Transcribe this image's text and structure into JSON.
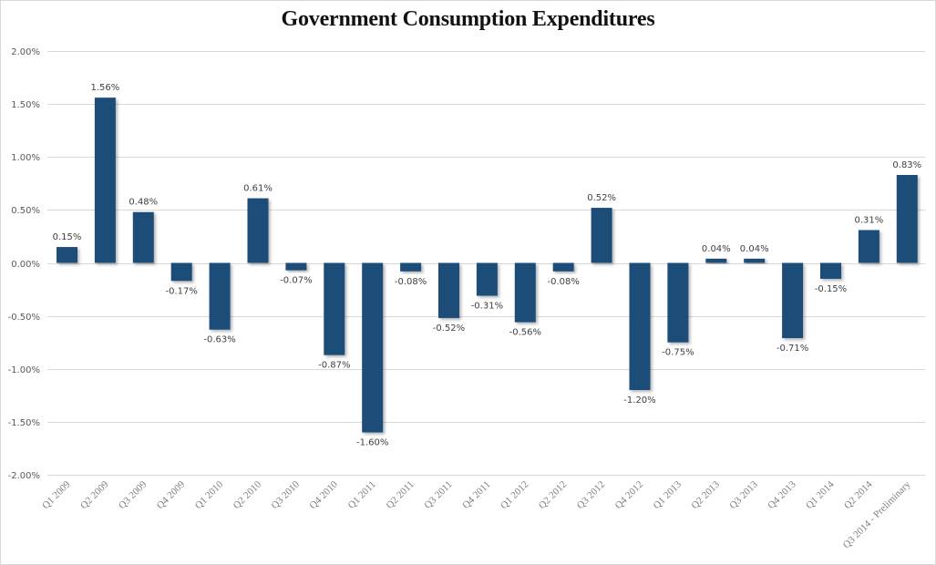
{
  "chart_data": {
    "type": "bar",
    "title": "Government Consumption Expenditures",
    "xlabel": "",
    "ylabel": "",
    "ylim": [
      -2.0,
      2.0
    ],
    "yticks": [
      2.0,
      1.5,
      1.0,
      0.5,
      0.0,
      -0.5,
      -1.0,
      -1.5,
      -2.0
    ],
    "ytick_labels": [
      "2.00%",
      "1.50%",
      "1.00%",
      "0.50%",
      "0.00%",
      "-0.50%",
      "-1.00%",
      "-1.50%",
      "-2.00%"
    ],
    "grid": true,
    "legend": "none",
    "bar_color": "#1f4e79",
    "categories": [
      "Q1 2009",
      "Q2 2009",
      "Q3 2009",
      "Q4 2009",
      "Q1 2010",
      "Q2 2010",
      "Q3 2010",
      "Q4 2010",
      "Q1 2011",
      "Q2 2011",
      "Q3 2011",
      "Q4 2011",
      "Q1 2012",
      "Q2 2012",
      "Q3 2012",
      "Q4 2012",
      "Q1 2013",
      "Q2 2013",
      "Q3 2013",
      "Q4 2013",
      "Q1 2014",
      "Q2 2014",
      "Q3 2014 - Preliminary"
    ],
    "values": [
      0.15,
      1.56,
      0.48,
      -0.17,
      -0.63,
      0.61,
      -0.07,
      -0.87,
      -1.6,
      -0.08,
      -0.52,
      -0.31,
      -0.56,
      -0.08,
      0.52,
      -1.2,
      -0.75,
      0.04,
      0.04,
      -0.71,
      -0.15,
      0.31,
      0.83
    ],
    "data_labels": [
      "0.15%",
      "1.56%",
      "0.48%",
      "-0.17%",
      "-0.63%",
      "0.61%",
      "-0.07%",
      "-0.87%",
      "-1.60%",
      "-0.08%",
      "-0.52%",
      "-0.31%",
      "-0.56%",
      "-0.08%",
      "0.52%",
      "-1.20%",
      "-0.75%",
      "0.04%",
      "0.04%",
      "-0.71%",
      "-0.15%",
      "0.31%",
      "0.83%"
    ]
  }
}
